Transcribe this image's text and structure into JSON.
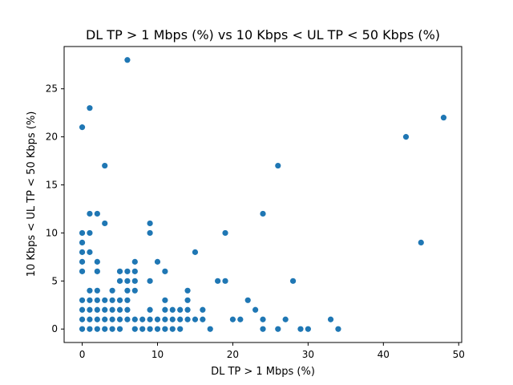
{
  "chart_data": {
    "type": "scatter",
    "title": "DL TP > 1 Mbps (%) vs 10 Kbps < UL TP < 50 Kbps (%)",
    "xlabel": "DL TP > 1 Mbps (%)",
    "ylabel": "10 Kbps < UL TP < 50 Kbps (%)",
    "xlim": [
      -2.4,
      50.4
    ],
    "ylim": [
      -1.4,
      29.4
    ],
    "xticks": [
      0,
      10,
      20,
      30,
      40,
      50
    ],
    "yticks": [
      0,
      5,
      10,
      15,
      20,
      25
    ],
    "grid": false,
    "marker_color": "#1f77b4",
    "points": [
      [
        0,
        0
      ],
      [
        0,
        1
      ],
      [
        0,
        2
      ],
      [
        0,
        3
      ],
      [
        0,
        6
      ],
      [
        0,
        7
      ],
      [
        0,
        8
      ],
      [
        0,
        9
      ],
      [
        0,
        10
      ],
      [
        0,
        21
      ],
      [
        1,
        0
      ],
      [
        1,
        1
      ],
      [
        1,
        2
      ],
      [
        1,
        3
      ],
      [
        1,
        4
      ],
      [
        1,
        8
      ],
      [
        1,
        10
      ],
      [
        1,
        12
      ],
      [
        1,
        23
      ],
      [
        2,
        0
      ],
      [
        2,
        1
      ],
      [
        2,
        2
      ],
      [
        2,
        3
      ],
      [
        2,
        4
      ],
      [
        2,
        6
      ],
      [
        2,
        7
      ],
      [
        2,
        12
      ],
      [
        3,
        0
      ],
      [
        3,
        1
      ],
      [
        3,
        2
      ],
      [
        3,
        3
      ],
      [
        3,
        11
      ],
      [
        3,
        17
      ],
      [
        4,
        0
      ],
      [
        4,
        1
      ],
      [
        4,
        2
      ],
      [
        4,
        3
      ],
      [
        4,
        4
      ],
      [
        5,
        0
      ],
      [
        5,
        1
      ],
      [
        5,
        2
      ],
      [
        5,
        3
      ],
      [
        5,
        5
      ],
      [
        5,
        6
      ],
      [
        6,
        1
      ],
      [
        6,
        2
      ],
      [
        6,
        3
      ],
      [
        6,
        4
      ],
      [
        6,
        5
      ],
      [
        6,
        6
      ],
      [
        6,
        28
      ],
      [
        7,
        0
      ],
      [
        7,
        1
      ],
      [
        7,
        4
      ],
      [
        7,
        5
      ],
      [
        7,
        6
      ],
      [
        7,
        7
      ],
      [
        8,
        0
      ],
      [
        8,
        1
      ],
      [
        9,
        0
      ],
      [
        9,
        1
      ],
      [
        9,
        2
      ],
      [
        9,
        5
      ],
      [
        9,
        10
      ],
      [
        9,
        11
      ],
      [
        10,
        0
      ],
      [
        10,
        1
      ],
      [
        10,
        7
      ],
      [
        11,
        0
      ],
      [
        11,
        1
      ],
      [
        11,
        2
      ],
      [
        11,
        3
      ],
      [
        11,
        6
      ],
      [
        12,
        0
      ],
      [
        12,
        1
      ],
      [
        12,
        2
      ],
      [
        13,
        0
      ],
      [
        13,
        1
      ],
      [
        13,
        2
      ],
      [
        14,
        1
      ],
      [
        14,
        2
      ],
      [
        14,
        3
      ],
      [
        14,
        4
      ],
      [
        15,
        1
      ],
      [
        15,
        8
      ],
      [
        16,
        1
      ],
      [
        16,
        2
      ],
      [
        17,
        0
      ],
      [
        18,
        5
      ],
      [
        19,
        5
      ],
      [
        19,
        10
      ],
      [
        20,
        1
      ],
      [
        21,
        1
      ],
      [
        22,
        3
      ],
      [
        23,
        2
      ],
      [
        24,
        0
      ],
      [
        24,
        1
      ],
      [
        24,
        12
      ],
      [
        26,
        0
      ],
      [
        26,
        17
      ],
      [
        27,
        1
      ],
      [
        28,
        5
      ],
      [
        29,
        0
      ],
      [
        30,
        0
      ],
      [
        33,
        1
      ],
      [
        34,
        0
      ],
      [
        43,
        20
      ],
      [
        45,
        9
      ],
      [
        48,
        22
      ]
    ]
  }
}
